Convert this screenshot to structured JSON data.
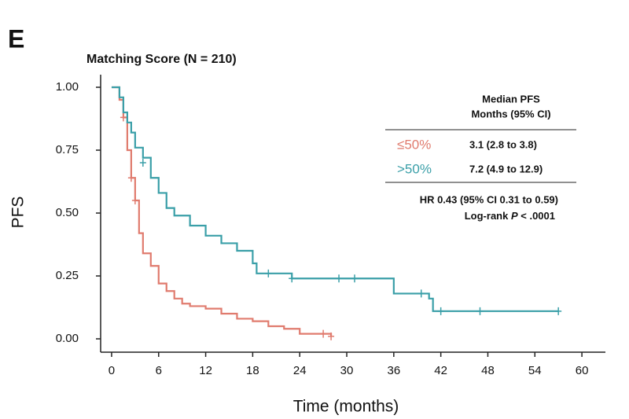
{
  "chart_data": {
    "type": "line",
    "step": true,
    "panel": "E",
    "title": "Matching Score (N = 210)",
    "x_label": "Time (months)",
    "y_label": "PFS",
    "xlim": [
      -1.4,
      63
    ],
    "ylim": [
      -0.053,
      1.05
    ],
    "xticks": [
      0,
      6,
      12,
      18,
      24,
      30,
      36,
      42,
      48,
      54,
      60
    ],
    "yticks": [
      {
        "value": 0,
        "label": "0.00"
      },
      {
        "value": 0.25,
        "label": "0.25"
      },
      {
        "value": 0.5,
        "label": "0.50"
      },
      {
        "value": 0.75,
        "label": "0.75"
      },
      {
        "value": 1,
        "label": "1.00"
      }
    ],
    "table_header": [
      "Median PFS",
      "Months (95% CI)"
    ],
    "series": [
      {
        "name": "≤50%",
        "color": "#e07b6e",
        "median_label": "3.1 (2.8 to 3.8)",
        "x": [
          0,
          1,
          1.5,
          2,
          2.5,
          3,
          3.5,
          4,
          5,
          6,
          7,
          8,
          9,
          10,
          12,
          14,
          16,
          18,
          20,
          22,
          24,
          26,
          28
        ],
        "values": [
          1,
          0.95,
          0.88,
          0.75,
          0.64,
          0.55,
          0.42,
          0.34,
          0.29,
          0.22,
          0.19,
          0.16,
          0.14,
          0.13,
          0.12,
          0.1,
          0.08,
          0.07,
          0.05,
          0.04,
          0.02,
          0.02,
          0.01
        ],
        "censor_x": [
          1.5,
          2.5,
          3,
          27,
          28
        ],
        "censor_y": [
          0.88,
          0.64,
          0.55,
          0.02,
          0.01
        ]
      },
      {
        "name": ">50%",
        "color": "#3a9fa8",
        "median_label": "7.2 (4.9 to 12.9)",
        "x": [
          0,
          1,
          1.5,
          2,
          2.5,
          3,
          4,
          5,
          6,
          7,
          8,
          10,
          12,
          14,
          16,
          18,
          18.5,
          23,
          36,
          40.5,
          41,
          57
        ],
        "values": [
          1,
          0.96,
          0.9,
          0.86,
          0.82,
          0.76,
          0.72,
          0.64,
          0.58,
          0.52,
          0.49,
          0.45,
          0.41,
          0.38,
          0.35,
          0.3,
          0.26,
          0.24,
          0.18,
          0.16,
          0.11,
          0.11
        ],
        "censor_x": [
          4,
          20,
          23,
          29,
          31,
          39.5,
          42,
          47,
          57
        ],
        "censor_y": [
          0.7,
          0.26,
          0.24,
          0.24,
          0.24,
          0.18,
          0.11,
          0.11,
          0.11
        ]
      }
    ],
    "hr_text": "HR 0.43 (95% CI 0.31 to 0.59)",
    "logrank_text": [
      "Log-rank ",
      "P",
      " < .0001"
    ]
  }
}
